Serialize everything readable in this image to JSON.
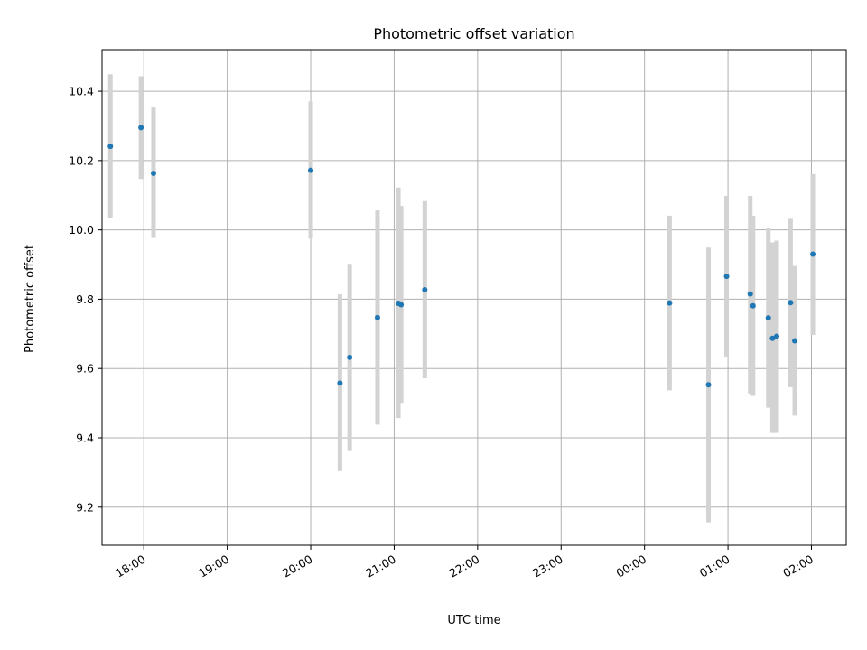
{
  "chart_data": {
    "type": "scatter",
    "title": "Photometric offset variation",
    "xlabel": "UTC time",
    "ylabel": "Photometric offset",
    "x_axis": {
      "kind": "time",
      "range": [
        "17:30",
        "02:25"
      ],
      "ticks": [
        {
          "value": "18:00",
          "label": "18:00"
        },
        {
          "value": "19:00",
          "label": "19:00"
        },
        {
          "value": "20:00",
          "label": "20:00"
        },
        {
          "value": "21:00",
          "label": "21:00"
        },
        {
          "value": "22:00",
          "label": "22:00"
        },
        {
          "value": "23:00",
          "label": "23:00"
        },
        {
          "value": "00:00",
          "label": "00:00"
        },
        {
          "value": "01:00",
          "label": "01:00"
        },
        {
          "value": "02:00",
          "label": "02:00"
        }
      ]
    },
    "y_axis": {
      "range": [
        9.09,
        10.52
      ],
      "ticks": [
        {
          "value": 9.2,
          "label": "9.2"
        },
        {
          "value": 9.4,
          "label": "9.4"
        },
        {
          "value": 9.6,
          "label": "9.6"
        },
        {
          "value": 9.8,
          "label": "9.8"
        },
        {
          "value": 10.0,
          "label": "10.0"
        },
        {
          "value": 10.2,
          "label": "10.2"
        },
        {
          "value": 10.4,
          "label": "10.4"
        }
      ]
    },
    "grid": true,
    "colors": {
      "marker": "#1f77b4",
      "errorbar": "#d3d3d3",
      "grid": "#b0b0b0"
    },
    "points": [
      {
        "time": "17:36",
        "y": 10.241,
        "low": 10.033,
        "high": 10.449
      },
      {
        "time": "17:58",
        "y": 10.295,
        "low": 10.147,
        "high": 10.443
      },
      {
        "time": "18:07",
        "y": 10.163,
        "low": 9.977,
        "high": 10.353
      },
      {
        "time": "20:00",
        "y": 10.172,
        "low": 9.975,
        "high": 10.371
      },
      {
        "time": "20:21",
        "y": 9.558,
        "low": 9.304,
        "high": 9.814
      },
      {
        "time": "20:28",
        "y": 9.632,
        "low": 9.362,
        "high": 9.902
      },
      {
        "time": "20:48",
        "y": 9.747,
        "low": 9.438,
        "high": 10.056
      },
      {
        "time": "21:03",
        "y": 9.788,
        "low": 9.457,
        "high": 10.122
      },
      {
        "time": "21:05",
        "y": 9.784,
        "low": 9.501,
        "high": 10.069
      },
      {
        "time": "21:22",
        "y": 9.827,
        "low": 9.572,
        "high": 10.083
      },
      {
        "time": "00:18",
        "y": 9.789,
        "low": 9.537,
        "high": 10.041
      },
      {
        "time": "00:46",
        "y": 9.553,
        "low": 9.156,
        "high": 9.949
      },
      {
        "time": "00:59",
        "y": 9.866,
        "low": 9.634,
        "high": 10.098
      },
      {
        "time": "01:16",
        "y": 9.815,
        "low": 9.528,
        "high": 10.098
      },
      {
        "time": "01:18",
        "y": 9.781,
        "low": 9.521,
        "high": 10.041
      },
      {
        "time": "01:29",
        "y": 9.746,
        "low": 9.487,
        "high": 10.006
      },
      {
        "time": "01:32",
        "y": 9.687,
        "low": 9.414,
        "high": 9.964
      },
      {
        "time": "01:35",
        "y": 9.693,
        "low": 9.414,
        "high": 9.969
      },
      {
        "time": "01:45",
        "y": 9.79,
        "low": 9.546,
        "high": 10.032
      },
      {
        "time": "01:48",
        "y": 9.68,
        "low": 9.464,
        "high": 9.896
      },
      {
        "time": "02:01",
        "y": 9.93,
        "low": 9.697,
        "high": 10.161
      }
    ]
  }
}
